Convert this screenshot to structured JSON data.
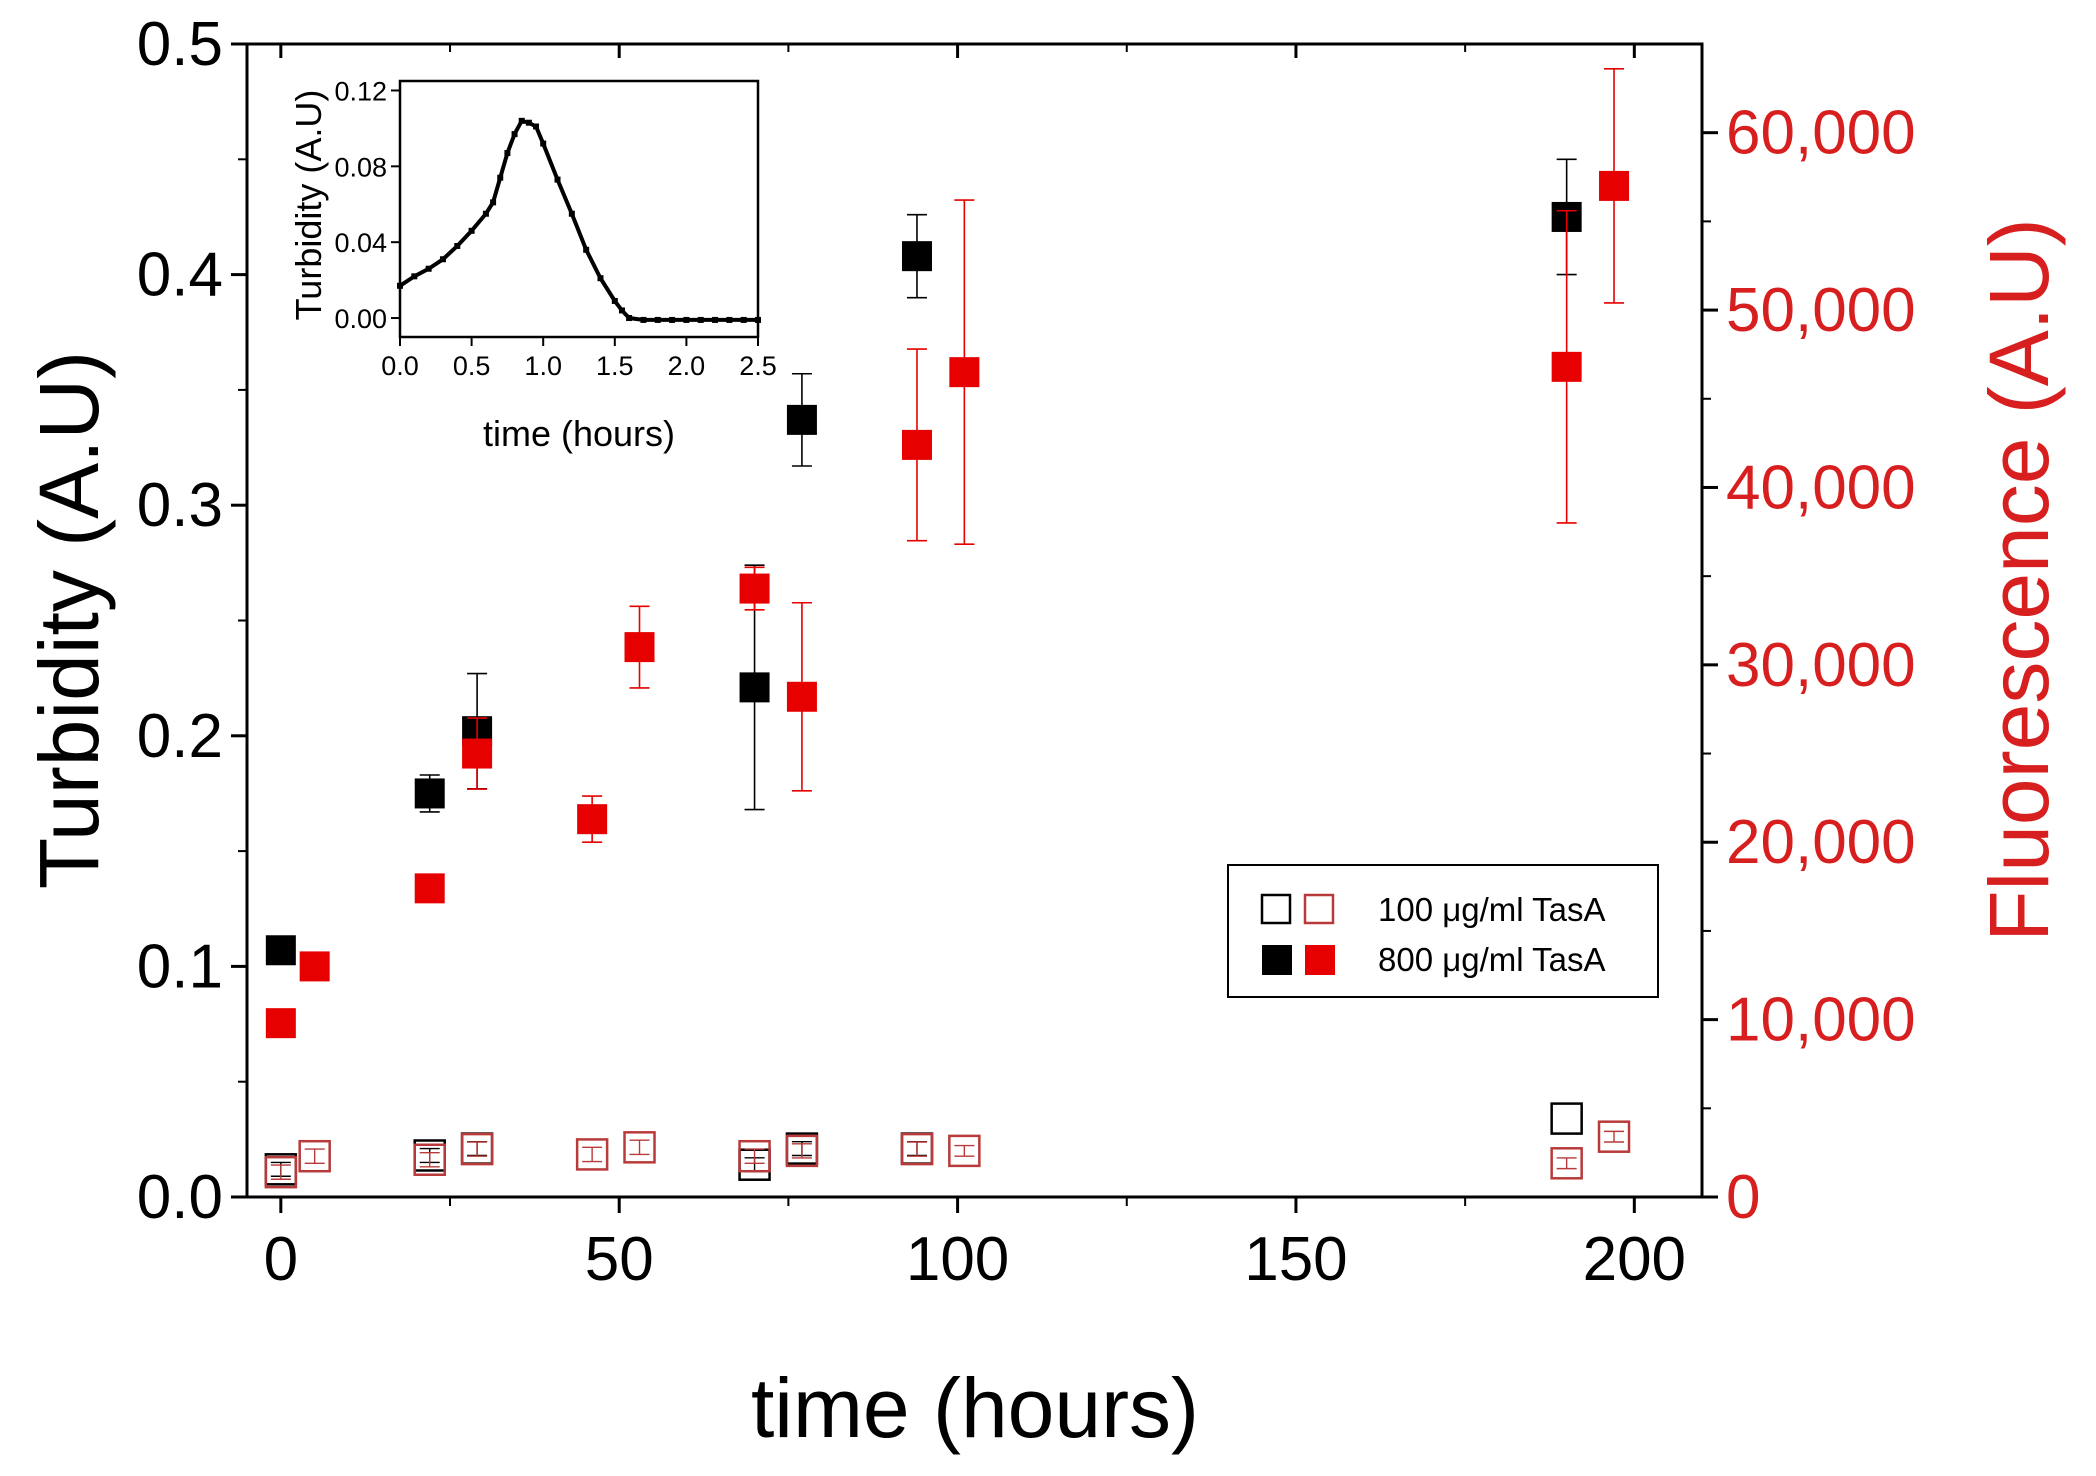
{
  "chart_data": {
    "type": "scatter",
    "xlabel": "time (hours)",
    "ylabel_left": "Turbidity (A.U)",
    "ylabel_right": "Fluorescence (A.U)",
    "xlim": [
      -5,
      210
    ],
    "ylim_left": [
      0,
      0.5
    ],
    "ylim_right": [
      0,
      65000
    ],
    "x_ticks": [
      "0",
      "50",
      "100",
      "150",
      "200"
    ],
    "y_left_ticks": [
      "0.0",
      "0.1",
      "0.2",
      "0.3",
      "0.4",
      "0.5"
    ],
    "y_right_ticks": [
      "0",
      "10,000",
      "20,000",
      "30,000",
      "40,000",
      "50,000",
      "60,000"
    ],
    "colors": {
      "turbidity": "#000000",
      "fluorescence": "#e60000",
      "fluorescence_open": "#b83a3a",
      "right_axis": "#d71f1f"
    },
    "legend": [
      {
        "label": "100 μg/ml TasA",
        "style": "open"
      },
      {
        "label": "800 μg/ml TasA",
        "style": "filled"
      }
    ],
    "series": [
      {
        "name": "Turbidity 800 μg/ml TasA",
        "axis": "left",
        "filled": true,
        "color_key": "turbidity",
        "points": [
          {
            "x": 0,
            "y": 0.107,
            "err": 0.0
          },
          {
            "x": 22,
            "y": 0.175,
            "err": 0.008
          },
          {
            "x": 29,
            "y": 0.202,
            "err": 0.025
          },
          {
            "x": 70,
            "y": 0.221,
            "err": 0.053
          },
          {
            "x": 77,
            "y": 0.337,
            "err": 0.02
          },
          {
            "x": 94,
            "y": 0.408,
            "err": 0.018
          },
          {
            "x": 190,
            "y": 0.425,
            "err": 0.025
          }
        ]
      },
      {
        "name": "Fluorescence 800 μg/ml TasA",
        "axis": "right",
        "filled": true,
        "color_key": "fluorescence",
        "points": [
          {
            "x": 0,
            "y": 9800,
            "err": 0
          },
          {
            "x": 5,
            "y": 13000,
            "err": 0
          },
          {
            "x": 22,
            "y": 17400,
            "err": 0
          },
          {
            "x": 29,
            "y": 25000,
            "err": 2000
          },
          {
            "x": 46,
            "y": 21300,
            "err": 1300
          },
          {
            "x": 53,
            "y": 31000,
            "err": 2300
          },
          {
            "x": 70,
            "y": 34300,
            "err": 1200
          },
          {
            "x": 77,
            "y": 28200,
            "err": 5300
          },
          {
            "x": 94,
            "y": 42400,
            "err": 5400
          },
          {
            "x": 101,
            "y": 46500,
            "err": 9700
          },
          {
            "x": 190,
            "y": 46800,
            "err": 8800
          },
          {
            "x": 197,
            "y": 57000,
            "err": 6600
          }
        ]
      },
      {
        "name": "Turbidity 100 μg/ml TasA",
        "axis": "left",
        "filled": false,
        "color_key": "turbidity",
        "points": [
          {
            "x": 0,
            "y": 0.012,
            "err": 0.003
          },
          {
            "x": 22,
            "y": 0.018,
            "err": 0.003
          },
          {
            "x": 29,
            "y": 0.021,
            "err": 0.003
          },
          {
            "x": 70,
            "y": 0.014,
            "err": 0.003
          },
          {
            "x": 77,
            "y": 0.021,
            "err": 0.003
          },
          {
            "x": 94,
            "y": 0.021,
            "err": 0.003
          },
          {
            "x": 190,
            "y": 0.034,
            "err": 0.0
          }
        ]
      },
      {
        "name": "Fluorescence 100 μg/ml TasA",
        "axis": "right",
        "filled": false,
        "color_key": "fluorescence_open",
        "points": [
          {
            "x": 0,
            "y": 1400,
            "err": 400
          },
          {
            "x": 5,
            "y": 2300,
            "err": 400
          },
          {
            "x": 22,
            "y": 2100,
            "err": 400
          },
          {
            "x": 29,
            "y": 2700,
            "err": 400
          },
          {
            "x": 46,
            "y": 2400,
            "err": 400
          },
          {
            "x": 53,
            "y": 2800,
            "err": 400
          },
          {
            "x": 70,
            "y": 2300,
            "err": 400
          },
          {
            "x": 77,
            "y": 2600,
            "err": 400
          },
          {
            "x": 94,
            "y": 2700,
            "err": 400
          },
          {
            "x": 101,
            "y": 2600,
            "err": 300
          },
          {
            "x": 190,
            "y": 1900,
            "err": 300
          },
          {
            "x": 197,
            "y": 3400,
            "err": 300
          }
        ]
      }
    ],
    "inset": {
      "type": "line",
      "xlabel": "time (hours)",
      "ylabel": "Turbidity (A.U)",
      "xlim": [
        0,
        2.5
      ],
      "ylim": [
        -0.01,
        0.125
      ],
      "x_ticks": [
        "0.0",
        "0.5",
        "1.0",
        "1.5",
        "2.0",
        "2.5"
      ],
      "y_ticks": [
        "0.00",
        "0.04",
        "0.08",
        "0.12"
      ],
      "x": [
        0,
        0.1,
        0.2,
        0.3,
        0.4,
        0.5,
        0.6,
        0.65,
        0.7,
        0.75,
        0.8,
        0.85,
        0.9,
        0.95,
        1.0,
        1.1,
        1.2,
        1.3,
        1.4,
        1.5,
        1.55,
        1.6,
        1.7,
        1.8,
        1.9,
        2.0,
        2.1,
        2.2,
        2.3,
        2.4,
        2.5
      ],
      "y": [
        0.017,
        0.022,
        0.026,
        0.031,
        0.038,
        0.046,
        0.055,
        0.061,
        0.074,
        0.087,
        0.097,
        0.104,
        0.103,
        0.101,
        0.092,
        0.073,
        0.055,
        0.036,
        0.021,
        0.009,
        0.004,
        0.0,
        -0.001,
        -0.001,
        -0.001,
        -0.001,
        -0.001,
        -0.001,
        -0.001,
        -0.001,
        -0.001
      ]
    }
  }
}
